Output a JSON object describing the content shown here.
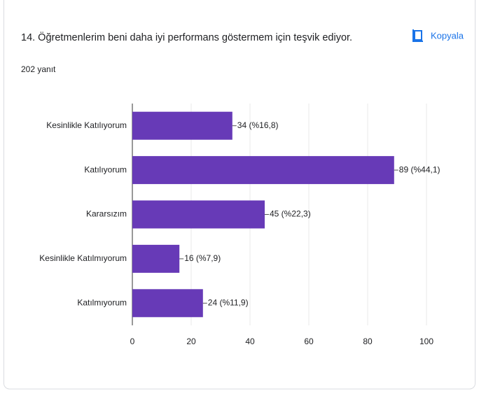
{
  "header": {
    "title": "14. Öğretmenlerim beni daha iyi performans göstermem için teşvik ediyor.",
    "copy_label": "Kopyala",
    "response_count": "202 yanıt"
  },
  "chart_data": {
    "type": "bar",
    "orientation": "horizontal",
    "categories": [
      "Kesinlikle Katılıyorum",
      "Katılıyorum",
      "Kararsızım",
      "Kesinlikle Katılmıyorum",
      "Katılmıyorum"
    ],
    "values": [
      34,
      89,
      45,
      16,
      24
    ],
    "value_labels": [
      "34 (%16,8)",
      "89 (%44,1)",
      "45 (%22,3)",
      "16 (%7,9)",
      "24 (%11,9)"
    ],
    "color": "#673ab7",
    "xlim": [
      0,
      100
    ],
    "xticks": [
      0,
      20,
      40,
      60,
      80,
      100
    ],
    "grid": true
  }
}
